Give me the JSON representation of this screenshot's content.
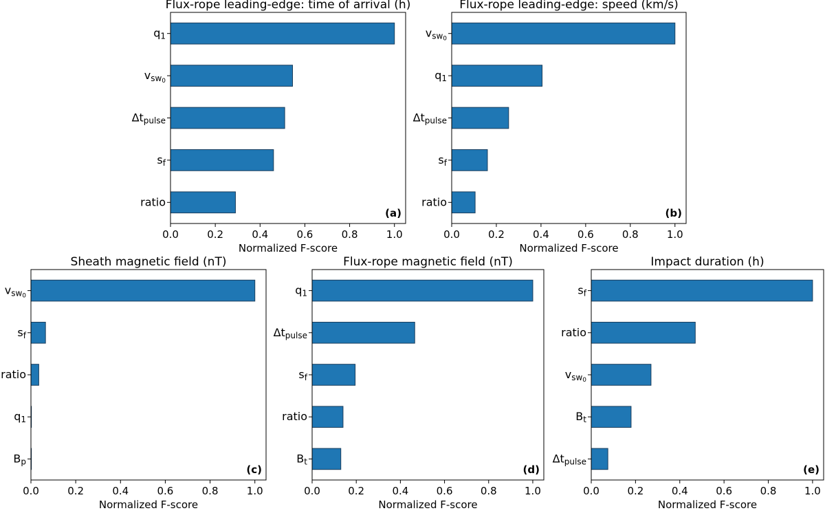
{
  "colors": {
    "bar": "#1f77b4",
    "bar_edge": "#1a3d5c",
    "axes": "#000000"
  },
  "chart_data": [
    {
      "type": "bar",
      "orientation": "horizontal",
      "title": "Flux-rope leading-edge: time of arrival (h)",
      "panel_label": "(a)",
      "xlabel": "Normalized F-score",
      "xlim": [
        0,
        1.05
      ],
      "xticks": [
        "0.0",
        "0.2",
        "0.4",
        "0.6",
        "0.8",
        "1.0"
      ],
      "categories": [
        {
          "base": "q",
          "sub": "1"
        },
        {
          "base": "v",
          "sub": "sw",
          "subsub": "0"
        },
        {
          "base": "Δt",
          "sub": "pulse"
        },
        {
          "base": "s",
          "sub": "f"
        },
        {
          "base": "ratio"
        }
      ],
      "values": [
        1.0,
        0.545,
        0.51,
        0.46,
        0.29
      ]
    },
    {
      "type": "bar",
      "orientation": "horizontal",
      "title": "Flux-rope leading-edge: speed (km/s)",
      "panel_label": "(b)",
      "xlabel": "Normalized F-score",
      "xlim": [
        0,
        1.05
      ],
      "xticks": [
        "0.0",
        "0.2",
        "0.4",
        "0.6",
        "0.8",
        "1.0"
      ],
      "categories": [
        {
          "base": "v",
          "sub": "sw",
          "subsub": "0"
        },
        {
          "base": "q",
          "sub": "1"
        },
        {
          "base": "Δt",
          "sub": "pulse"
        },
        {
          "base": "s",
          "sub": "f"
        },
        {
          "base": "ratio"
        }
      ],
      "values": [
        1.0,
        0.405,
        0.255,
        0.16,
        0.105
      ]
    },
    {
      "type": "bar",
      "orientation": "horizontal",
      "title": "Sheath magnetic field (nT)",
      "panel_label": "(c)",
      "xlabel": "Normalized F-score",
      "xlim": [
        0,
        1.05
      ],
      "xticks": [
        "0.0",
        "0.2",
        "0.4",
        "0.6",
        "0.8",
        "1.0"
      ],
      "categories": [
        {
          "base": "v",
          "sub": "sw",
          "subsub": "0"
        },
        {
          "base": "s",
          "sub": "f"
        },
        {
          "base": "ratio"
        },
        {
          "base": "q",
          "sub": "1"
        },
        {
          "base": "B",
          "sub": "p"
        }
      ],
      "values": [
        1.0,
        0.065,
        0.035,
        0.002,
        0.001
      ]
    },
    {
      "type": "bar",
      "orientation": "horizontal",
      "title": "Flux-rope magnetic field (nT)",
      "panel_label": "(d)",
      "xlabel": "Normalized F-score",
      "xlim": [
        0,
        1.05
      ],
      "xticks": [
        "0.0",
        "0.2",
        "0.4",
        "0.6",
        "0.8",
        "1.0"
      ],
      "categories": [
        {
          "base": "q",
          "sub": "1"
        },
        {
          "base": "Δt",
          "sub": "pulse"
        },
        {
          "base": "s",
          "sub": "f"
        },
        {
          "base": "ratio"
        },
        {
          "base": "B",
          "sub": "t"
        }
      ],
      "values": [
        1.0,
        0.465,
        0.195,
        0.14,
        0.13
      ]
    },
    {
      "type": "bar",
      "orientation": "horizontal",
      "title": "Impact duration (h)",
      "panel_label": "(e)",
      "xlabel": "Normalized F-score",
      "xlim": [
        0,
        1.05
      ],
      "xticks": [
        "0.0",
        "0.2",
        "0.4",
        "0.6",
        "0.8",
        "1.0"
      ],
      "categories": [
        {
          "base": "s",
          "sub": "f"
        },
        {
          "base": "ratio"
        },
        {
          "base": "v",
          "sub": "sw",
          "subsub": "0"
        },
        {
          "base": "B",
          "sub": "t"
        },
        {
          "base": "Δt",
          "sub": "pulse"
        }
      ],
      "values": [
        1.0,
        0.47,
        0.27,
        0.18,
        0.075
      ]
    }
  ]
}
